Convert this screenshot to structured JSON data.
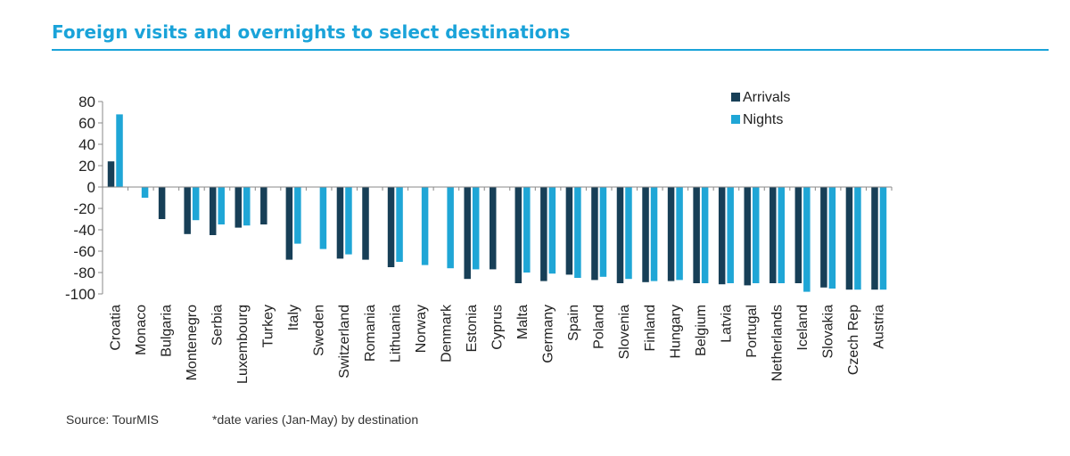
{
  "title": "Foreign visits and overnights to select destinations",
  "footer": {
    "source": "Source: TourMIS",
    "note": "*date varies (Jan-May) by destination"
  },
  "colors": {
    "accent": "#1aa3d9",
    "arrivals": "#173f57",
    "nights": "#1fa6d6"
  },
  "chart_data": {
    "type": "bar",
    "title": "Foreign visits and overnights to select destinations",
    "xlabel": "",
    "ylabel": "",
    "ylim": [
      -100,
      80
    ],
    "yticks": [
      80,
      60,
      40,
      20,
      0,
      -20,
      -40,
      -60,
      -80,
      -100
    ],
    "grid": false,
    "legend": "top-right",
    "categories": [
      "Croatia",
      "Monaco",
      "Bulgaria",
      "Montenegro",
      "Serbia",
      "Luxembourg",
      "Turkey",
      "Italy",
      "Sweden",
      "Switzerland",
      "Romania",
      "Lithuania",
      "Norway",
      "Denmark",
      "Estonia",
      "Cyprus",
      "Malta",
      "Germany",
      "Spain",
      "Poland",
      "Slovenia",
      "Finland",
      "Hungary",
      "Belgium",
      "Latvia",
      "Portugal",
      "Netherlands",
      "Iceland",
      "Slovakia",
      "Czech Rep",
      "Austria"
    ],
    "series": [
      {
        "name": "Arrivals",
        "values": [
          24,
          null,
          -30,
          -44,
          -45,
          -38,
          -35,
          -68,
          null,
          -67,
          -68,
          -75,
          null,
          null,
          -86,
          -77,
          -90,
          -88,
          -82,
          -87,
          -90,
          -89,
          -88,
          -90,
          -91,
          -92,
          -90,
          -90,
          -94,
          -96,
          -96
        ]
      },
      {
        "name": "Nights",
        "values": [
          68,
          -10,
          null,
          -31,
          -35,
          -36,
          null,
          -53,
          -58,
          -63,
          null,
          -70,
          -73,
          -76,
          -77,
          null,
          -80,
          -81,
          -85,
          -84,
          -86,
          -88,
          -87,
          -90,
          -90,
          -90,
          -90,
          -98,
          -95,
          -96,
          -96
        ]
      }
    ]
  }
}
